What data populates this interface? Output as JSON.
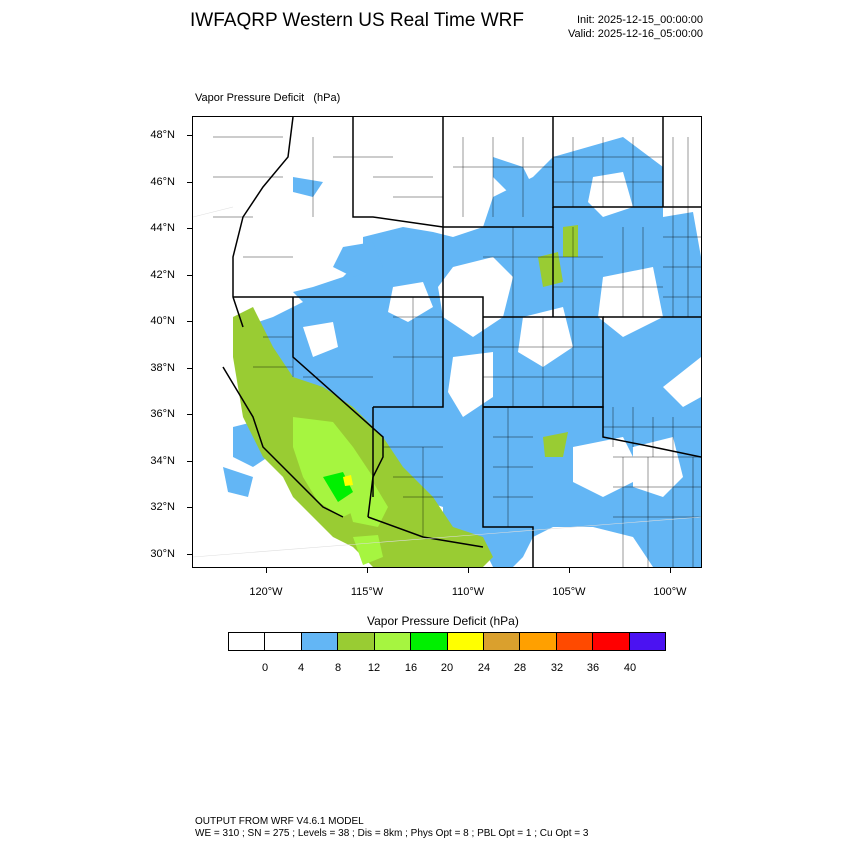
{
  "header": {
    "title": "IWFAQRP Western US Real Time WRF",
    "init": "Init: 2025-12-15_00:00:00",
    "valid": "Valid: 2025-12-16_05:00:00"
  },
  "panel": {
    "title": "Vapor Pressure Deficit   (hPa)"
  },
  "map": {
    "lat_labels": [
      "48°N",
      "46°N",
      "44°N",
      "42°N",
      "40°N",
      "38°N",
      "36°N",
      "34°N",
      "32°N",
      "30°N"
    ],
    "lon_labels": [
      "120°W",
      "115°W",
      "110°W",
      "105°W",
      "100°W"
    ],
    "lat_range": [
      29.6,
      48.8
    ],
    "lon_range": [
      -123.6,
      -98.4
    ]
  },
  "colorbar": {
    "title": "Vapor Pressure Deficit  (hPa)",
    "colors": [
      "#ffffff",
      "#ffffff",
      "#63b6f5",
      "#99cc33",
      "#a6f540",
      "#00f000",
      "#ffff00",
      "#daa02d",
      "#ffa000",
      "#ff4a00",
      "#ff0000",
      "#4b12f2"
    ],
    "labels": [
      "0",
      "4",
      "8",
      "12",
      "16",
      "20",
      "24",
      "28",
      "32",
      "36",
      "40"
    ],
    "palette": {
      "light_blue": "#63b6f5",
      "olive_green": "#99cc33",
      "yellow_green": "#a6f540",
      "green": "#00f000",
      "yellow": "#ffff00",
      "orange": "#ffa000"
    }
  },
  "footer": {
    "line1": "OUTPUT FROM WRF V4.6.1 MODEL",
    "line2": "WE = 310 ; SN = 275 ; Levels = 38 ; Dis = 8km ; Phys Opt = 8 ; PBL Opt = 1 ; Cu Opt = 3"
  }
}
